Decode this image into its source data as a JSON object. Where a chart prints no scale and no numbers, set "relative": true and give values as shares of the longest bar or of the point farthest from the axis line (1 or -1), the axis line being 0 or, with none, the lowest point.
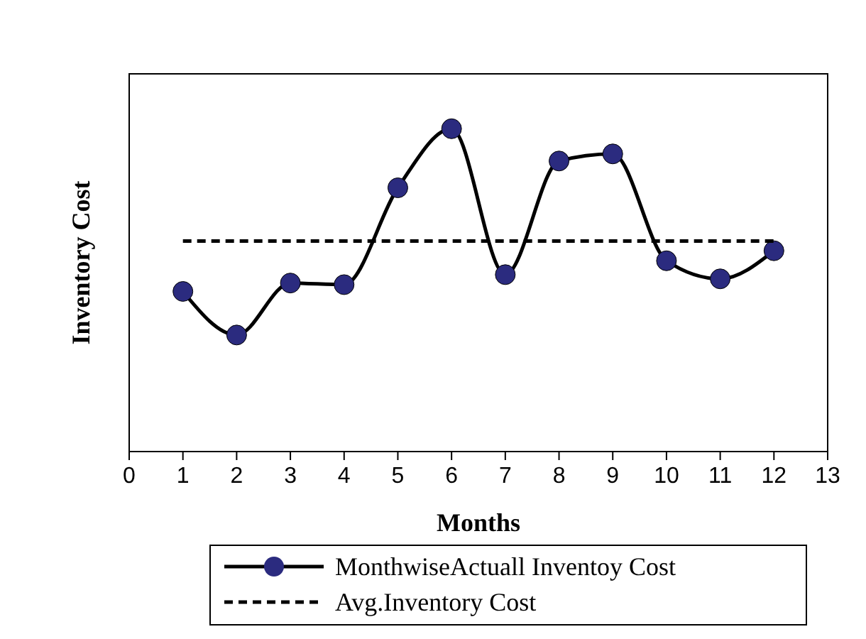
{
  "chart_data": {
    "type": "line",
    "xlabel": "Months",
    "ylabel": "Inventory Cost",
    "relative": true,
    "x": [
      1,
      2,
      3,
      4,
      5,
      6,
      7,
      8,
      9,
      10,
      11,
      12
    ],
    "xlim": [
      0,
      13
    ],
    "xticks": [
      0,
      1,
      2,
      3,
      4,
      5,
      6,
      7,
      8,
      9,
      10,
      11,
      12,
      13
    ],
    "series": [
      {
        "name": "MonthwiseActuall Inventoy Cost",
        "color": "#2b2b7f",
        "marker": "circle",
        "line_style": "solid",
        "values": [
          0.496,
          0.361,
          0.522,
          0.517,
          0.817,
          1,
          0.548,
          0.9,
          0.922,
          0.591,
          0.535,
          0.622
        ]
      },
      {
        "name": "Avg.Inventory Cost",
        "color": "#000000",
        "marker": "none",
        "line_style": "dashed",
        "values": [
          0.652,
          0.652,
          0.652,
          0.652,
          0.652,
          0.652,
          0.652,
          0.652,
          0.652,
          0.652,
          0.652,
          0.652
        ]
      }
    ],
    "legend": "bottom",
    "grid": false
  }
}
